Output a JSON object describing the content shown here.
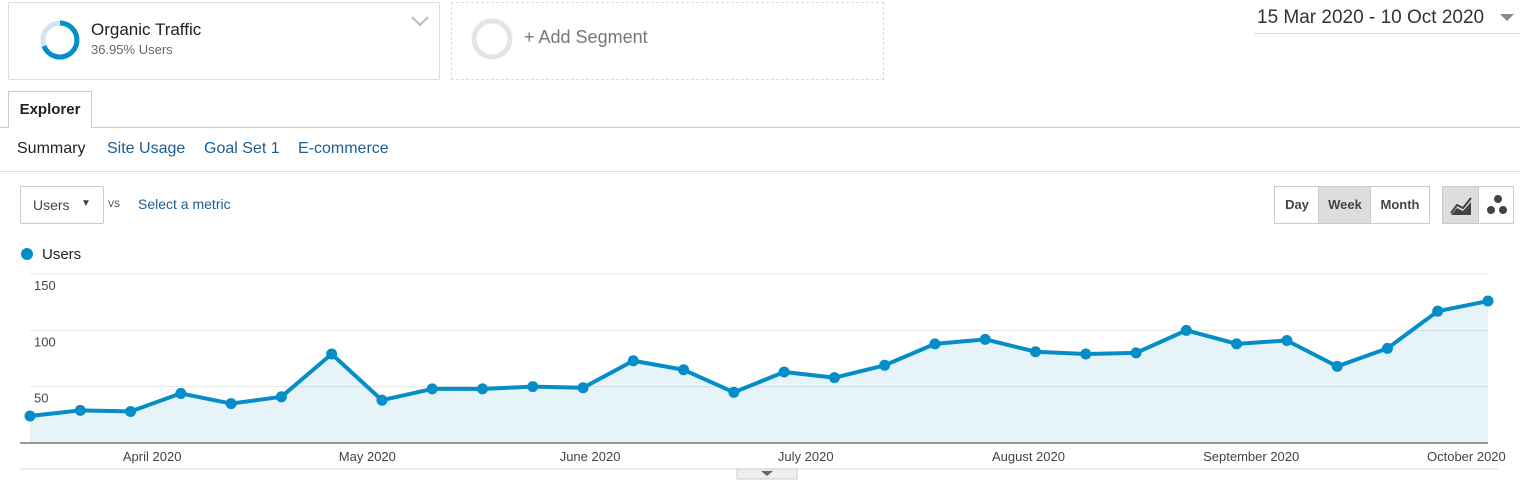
{
  "segments": {
    "active": {
      "name": "Organic Traffic",
      "detail": "36.95% Users"
    },
    "add": "+ Add Segment"
  },
  "date_range": "15 Mar 2020 - 10 Oct 2020",
  "tab": "Explorer",
  "subtabs": [
    "Summary",
    "Site Usage",
    "Goal Set 1",
    "E-commerce"
  ],
  "metric_picker": {
    "metric": "Users",
    "vs": "VS",
    "select": "Select a metric"
  },
  "granularity": [
    "Day",
    "Week",
    "Month"
  ],
  "chart_data": {
    "type": "line",
    "x": [
      0,
      1,
      2,
      3,
      4,
      5,
      6,
      7,
      8,
      9,
      10,
      11,
      12,
      13,
      14,
      15,
      16,
      17,
      18,
      19,
      20,
      21,
      22,
      23,
      24,
      25,
      26,
      27,
      28,
      29
    ],
    "xlim": [
      0,
      29
    ],
    "xticks": [
      {
        "value": 2.43,
        "label": "April 2020"
      },
      {
        "value": 6.71,
        "label": "May 2020"
      },
      {
        "value": 11.14,
        "label": "June 2020"
      },
      {
        "value": 15.43,
        "label": "July 2020"
      },
      {
        "value": 19.86,
        "label": "August 2020"
      },
      {
        "value": 24.29,
        "label": "September 2020"
      },
      {
        "value": 28.57,
        "label": "October 2020"
      }
    ],
    "ylim": [
      0,
      150
    ],
    "yticks": [
      50,
      100,
      150
    ],
    "grid": true,
    "series": [
      {
        "name": "Users",
        "color": "#058dc7",
        "values": [
          24,
          29,
          28,
          44,
          35,
          41,
          79,
          38,
          48,
          48,
          50,
          49,
          73,
          65,
          45,
          63,
          58,
          69,
          88,
          92,
          81,
          79,
          80,
          100,
          88,
          91,
          68,
          84,
          117,
          126
        ]
      }
    ]
  }
}
